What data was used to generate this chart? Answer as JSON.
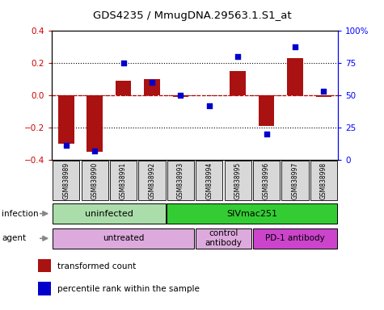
{
  "title": "GDS4235 / MmugDNA.29563.1.S1_at",
  "samples": [
    "GSM838989",
    "GSM838990",
    "GSM838991",
    "GSM838992",
    "GSM838993",
    "GSM838994",
    "GSM838995",
    "GSM838996",
    "GSM838997",
    "GSM838998"
  ],
  "transformed_count": [
    -0.3,
    -0.35,
    0.09,
    0.1,
    -0.01,
    0.0,
    0.15,
    -0.19,
    0.23,
    -0.01
  ],
  "percentile_rank": [
    11,
    7,
    75,
    60,
    50,
    42,
    80,
    20,
    88,
    53
  ],
  "ylim_left": [
    -0.4,
    0.4
  ],
  "ylim_right": [
    0,
    100
  ],
  "yticks_left": [
    -0.4,
    -0.2,
    0.0,
    0.2,
    0.4
  ],
  "yticks_right": [
    0,
    25,
    50,
    75,
    100
  ],
  "ytick_labels_right": [
    "0",
    "25",
    "50",
    "75",
    "100%"
  ],
  "bar_color": "#aa1111",
  "dot_color": "#0000cc",
  "zero_line_color": "#cc0000",
  "infection_groups": [
    {
      "label": "uninfected",
      "start": 0,
      "end": 4,
      "color": "#aaddaa"
    },
    {
      "label": "SIVmac251",
      "start": 4,
      "end": 10,
      "color": "#33cc33"
    }
  ],
  "agent_groups": [
    {
      "label": "untreated",
      "start": 0,
      "end": 5,
      "color": "#ddaadd"
    },
    {
      "label": "control\nantibody",
      "start": 5,
      "end": 7,
      "color": "#ddaadd"
    },
    {
      "label": "PD-1 antibody",
      "start": 7,
      "end": 10,
      "color": "#cc44cc"
    }
  ],
  "legend_items": [
    {
      "label": "transformed count",
      "color": "#aa1111"
    },
    {
      "label": "percentile rank within the sample",
      "color": "#0000cc"
    }
  ],
  "infection_label": "infection",
  "agent_label": "agent",
  "sample_bg": "#d8d8d8"
}
